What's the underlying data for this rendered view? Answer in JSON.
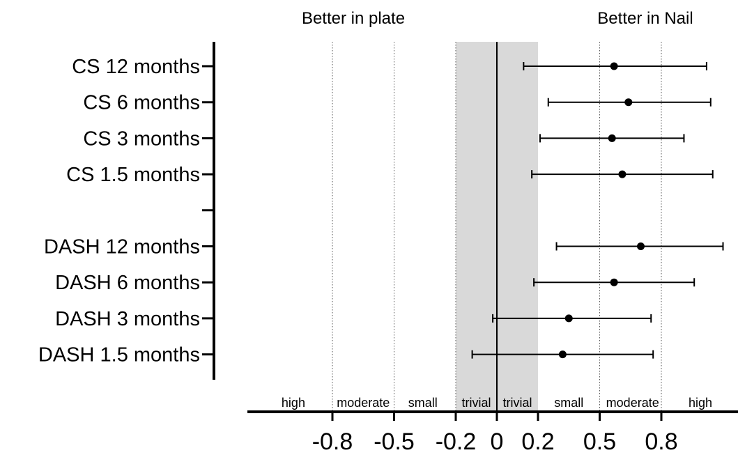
{
  "chart_data": {
    "type": "forest",
    "header_left": "Better in plate",
    "header_right": "Better in Nail",
    "xlim": [
      -1.1,
      1.1
    ],
    "x_ticks": [
      -0.8,
      -0.5,
      -0.2,
      0,
      0.2,
      0.5,
      0.8
    ],
    "x_tick_labels": [
      "-0.8",
      "-0.5",
      "-0.2",
      "0",
      "0.2",
      "0.5",
      "0.8"
    ],
    "dotted_reference_lines": [
      -0.8,
      -0.5,
      -0.2,
      0.5,
      0.8
    ],
    "trivial_band": [
      -0.2,
      0.2
    ],
    "null_line": 0,
    "effect_zones": [
      {
        "label": "high",
        "center": -0.99
      },
      {
        "label": "moderate",
        "center": -0.65
      },
      {
        "label": "small",
        "center": -0.36
      },
      {
        "label": "trivial",
        "center": -0.1
      },
      {
        "label": "trivial",
        "center": 0.1
      },
      {
        "label": "small",
        "center": 0.35
      },
      {
        "label": "moderate",
        "center": 0.66
      },
      {
        "label": "high",
        "center": 0.99
      }
    ],
    "rows": [
      {
        "label": "CS 12 months",
        "estimate": 0.57,
        "lower": 0.13,
        "upper": 1.02
      },
      {
        "label": "CS 6 months",
        "estimate": 0.64,
        "lower": 0.25,
        "upper": 1.04
      },
      {
        "label": "CS 3 months",
        "estimate": 0.56,
        "lower": 0.21,
        "upper": 0.91
      },
      {
        "label": "CS 1.5 months",
        "estimate": 0.61,
        "lower": 0.17,
        "upper": 1.05
      },
      {
        "label": "",
        "estimate": null,
        "lower": null,
        "upper": null
      },
      {
        "label": "DASH 12 months",
        "estimate": 0.7,
        "lower": 0.29,
        "upper": 1.1
      },
      {
        "label": "DASH 6 months",
        "estimate": 0.57,
        "lower": 0.18,
        "upper": 0.96
      },
      {
        "label": "DASH 3 months",
        "estimate": 0.35,
        "lower": -0.02,
        "upper": 0.75
      },
      {
        "label": "DASH 1.5 months",
        "estimate": 0.32,
        "lower": -0.12,
        "upper": 0.76
      }
    ]
  }
}
